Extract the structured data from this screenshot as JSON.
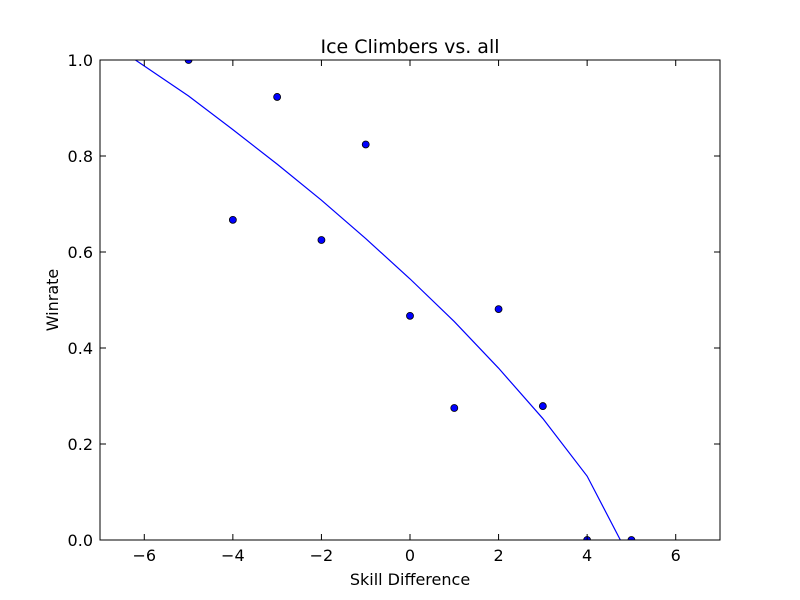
{
  "chart_data": {
    "type": "scatter",
    "title": "Ice Climbers vs. all",
    "xlabel": "Skill Difference",
    "ylabel": "Winrate",
    "xlim": [
      -7,
      7
    ],
    "ylim": [
      0.0,
      1.0
    ],
    "xticks": [
      -6,
      -4,
      -2,
      0,
      2,
      4,
      6
    ],
    "xtick_labels": [
      "−6",
      "−4",
      "−2",
      "0",
      "2",
      "4",
      "6"
    ],
    "yticks": [
      0.0,
      0.2,
      0.4,
      0.6,
      0.8,
      1.0
    ],
    "ytick_labels": [
      "0.0",
      "0.2",
      "0.4",
      "0.6",
      "0.8",
      "1.0"
    ],
    "grid": false,
    "points": [
      {
        "x": -5,
        "y": 1.0
      },
      {
        "x": -4,
        "y": 0.667
      },
      {
        "x": -3,
        "y": 0.923
      },
      {
        "x": -2,
        "y": 0.625
      },
      {
        "x": -1,
        "y": 0.824
      },
      {
        "x": 0,
        "y": 0.467
      },
      {
        "x": 1,
        "y": 0.275
      },
      {
        "x": 2,
        "y": 0.481
      },
      {
        "x": 3,
        "y": 0.279
      },
      {
        "x": 4,
        "y": 0.0
      },
      {
        "x": 5,
        "y": 0.0
      }
    ],
    "fit_curve": [
      {
        "x": -6.2,
        "y": 1.0
      },
      {
        "x": -5,
        "y": 0.925
      },
      {
        "x": -4,
        "y": 0.855
      },
      {
        "x": -3,
        "y": 0.783
      },
      {
        "x": -2,
        "y": 0.708
      },
      {
        "x": -1,
        "y": 0.628
      },
      {
        "x": 0,
        "y": 0.544
      },
      {
        "x": 1,
        "y": 0.455
      },
      {
        "x": 2,
        "y": 0.358
      },
      {
        "x": 3,
        "y": 0.253
      },
      {
        "x": 4,
        "y": 0.133
      },
      {
        "x": 4.75,
        "y": 0.0
      }
    ],
    "colors": {
      "point_fill": "#0000ff",
      "point_edge": "#000000",
      "curve": "#0000ff",
      "axes": "#000000"
    }
  }
}
